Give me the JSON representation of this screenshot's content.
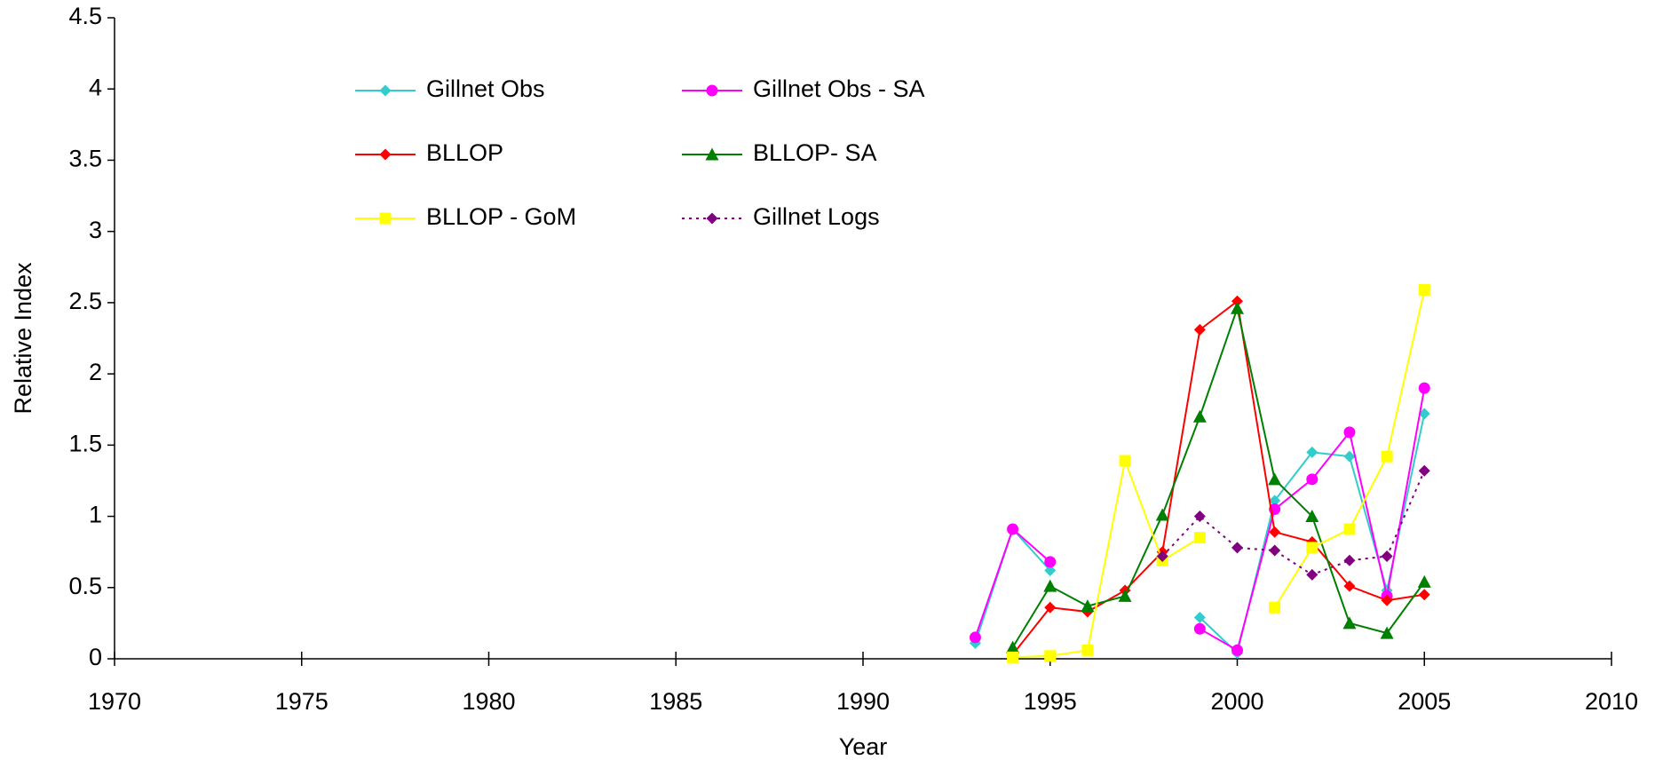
{
  "chart_data": {
    "type": "line",
    "x_label": "Year",
    "y_label": "Relative Index",
    "x": [
      1993,
      1994,
      1995,
      1996,
      1997,
      1998,
      1999,
      2000,
      2001,
      2002,
      2003,
      2004,
      2005
    ],
    "series": [
      {
        "name": "Gillnet Obs",
        "color": "#33cccc",
        "marker": "diamond",
        "dashed": false,
        "values": [
          0.11,
          0.91,
          0.62,
          null,
          null,
          null,
          0.29,
          0.04,
          1.11,
          1.45,
          1.42,
          0.48,
          1.72
        ]
      },
      {
        "name": "Gillnet Obs - SA",
        "color": "#ff00ff",
        "marker": "circle",
        "dashed": false,
        "values": [
          0.15,
          0.91,
          0.68,
          null,
          null,
          null,
          0.21,
          0.06,
          1.05,
          1.26,
          1.59,
          0.44,
          1.9
        ]
      },
      {
        "name": "BLLOP",
        "color": "#ff0000",
        "marker": "diamond",
        "dashed": false,
        "values": [
          null,
          0.03,
          0.36,
          0.33,
          0.48,
          0.75,
          2.31,
          2.51,
          0.89,
          0.82,
          0.51,
          0.41,
          0.45
        ]
      },
      {
        "name": "BLLOP- SA",
        "color": "#008000",
        "marker": "triangle",
        "dashed": false,
        "values": [
          null,
          0.08,
          0.51,
          0.37,
          0.44,
          1.01,
          1.7,
          2.46,
          1.26,
          1.0,
          0.25,
          0.18,
          0.54
        ]
      },
      {
        "name": "BLLOP - GoM",
        "color": "#ffff00",
        "marker": "square",
        "dashed": false,
        "values": [
          null,
          0.01,
          0.02,
          0.06,
          1.39,
          0.69,
          0.85,
          null,
          0.36,
          0.78,
          0.91,
          1.42,
          2.59
        ]
      },
      {
        "name": "Gillnet Logs",
        "color": "#800080",
        "marker": "diamond",
        "dashed": true,
        "values": [
          null,
          null,
          null,
          null,
          null,
          0.72,
          1.0,
          0.78,
          0.76,
          0.59,
          0.69,
          0.72,
          1.32
        ]
      }
    ],
    "xlim": [
      1970,
      2010
    ],
    "xticks": [
      1970,
      1975,
      1980,
      1985,
      1990,
      1995,
      2000,
      2005,
      2010
    ],
    "ylim": [
      0,
      4.5
    ],
    "yticks": [
      0,
      0.5,
      1,
      1.5,
      2,
      2.5,
      3,
      3.5,
      4,
      4.5
    ],
    "grid": false,
    "legend": "upper left"
  }
}
